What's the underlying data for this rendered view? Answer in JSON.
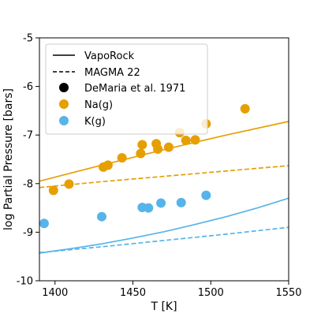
{
  "chart_data": {
    "type": "scatter",
    "title": "",
    "xlabel": "T [K]",
    "ylabel": "log Partial Pressure [bars]",
    "xlim": [
      1390,
      1550
    ],
    "ylim": [
      -10,
      -5
    ],
    "xticks": [
      1400,
      1450,
      1500,
      1550
    ],
    "yticks": [
      -10,
      -9,
      -8,
      -7,
      -6,
      -5
    ],
    "xtick_labels": [
      "1400",
      "1450",
      "1500",
      "1550"
    ],
    "ytick_labels": [
      "-10",
      "-9",
      "-8",
      "-7",
      "-6",
      "-5"
    ],
    "grid": false,
    "legend_placement": "top-left",
    "colors": {
      "na": "#E69F00",
      "k": "#56B4E9",
      "black": "#000000"
    },
    "legend": [
      {
        "label": "VapoRock",
        "style": "solid-line"
      },
      {
        "label": "MAGMA 22",
        "style": "dashed-line"
      },
      {
        "label": "DeMaria et al. 1971",
        "style": "marker",
        "color": "#000000"
      },
      {
        "label": "Na(g)",
        "style": "marker",
        "color": "#E69F00"
      },
      {
        "label": "K(g)",
        "style": "marker",
        "color": "#56B4E9"
      }
    ],
    "lines": [
      {
        "model": "VapoRock",
        "species": "Na(g)",
        "style": "solid",
        "color": "#E69F00",
        "x": [
          1390,
          1430,
          1470,
          1510,
          1550
        ],
        "y": [
          -7.95,
          -7.62,
          -7.3,
          -7.0,
          -6.72
        ]
      },
      {
        "model": "MAGMA 22",
        "species": "Na(g)",
        "style": "dashed",
        "color": "#E69F00",
        "x": [
          1390,
          1430,
          1470,
          1510,
          1550
        ],
        "y": [
          -8.08,
          -7.96,
          -7.85,
          -7.74,
          -7.63
        ]
      },
      {
        "model": "VapoRock",
        "species": "K(g)",
        "style": "solid",
        "color": "#56B4E9",
        "x": [
          1390,
          1410,
          1430,
          1450,
          1470,
          1490,
          1510,
          1530,
          1550
        ],
        "y": [
          -9.43,
          -9.34,
          -9.24,
          -9.12,
          -8.99,
          -8.84,
          -8.68,
          -8.5,
          -8.3
        ]
      },
      {
        "model": "MAGMA 22",
        "species": "K(g)",
        "style": "dashed",
        "color": "#56B4E9",
        "x": [
          1390,
          1430,
          1470,
          1510,
          1550
        ],
        "y": [
          -9.42,
          -9.3,
          -9.17,
          -9.04,
          -8.9
        ]
      }
    ],
    "series": [
      {
        "name": "Na(g)",
        "color": "#E69F00",
        "points": [
          {
            "x": 1399,
            "y": -8.14
          },
          {
            "x": 1409,
            "y": -8.01
          },
          {
            "x": 1431,
            "y": -7.66
          },
          {
            "x": 1434,
            "y": -7.62
          },
          {
            "x": 1443,
            "y": -7.47
          },
          {
            "x": 1455,
            "y": -7.38
          },
          {
            "x": 1456,
            "y": -7.2
          },
          {
            "x": 1465,
            "y": -7.18
          },
          {
            "x": 1466,
            "y": -7.29
          },
          {
            "x": 1473,
            "y": -7.25
          },
          {
            "x": 1480,
            "y": -6.95
          },
          {
            "x": 1484,
            "y": -7.11
          },
          {
            "x": 1490,
            "y": -7.1
          },
          {
            "x": 1497,
            "y": -6.77
          },
          {
            "x": 1522,
            "y": -6.46
          }
        ]
      },
      {
        "name": "K(g)",
        "color": "#56B4E9",
        "points": [
          {
            "x": 1393,
            "y": -8.82
          },
          {
            "x": 1430,
            "y": -8.68
          },
          {
            "x": 1456,
            "y": -8.49
          },
          {
            "x": 1460,
            "y": -8.5
          },
          {
            "x": 1468,
            "y": -8.4
          },
          {
            "x": 1481,
            "y": -8.39
          },
          {
            "x": 1497,
            "y": -8.24
          }
        ]
      }
    ]
  }
}
